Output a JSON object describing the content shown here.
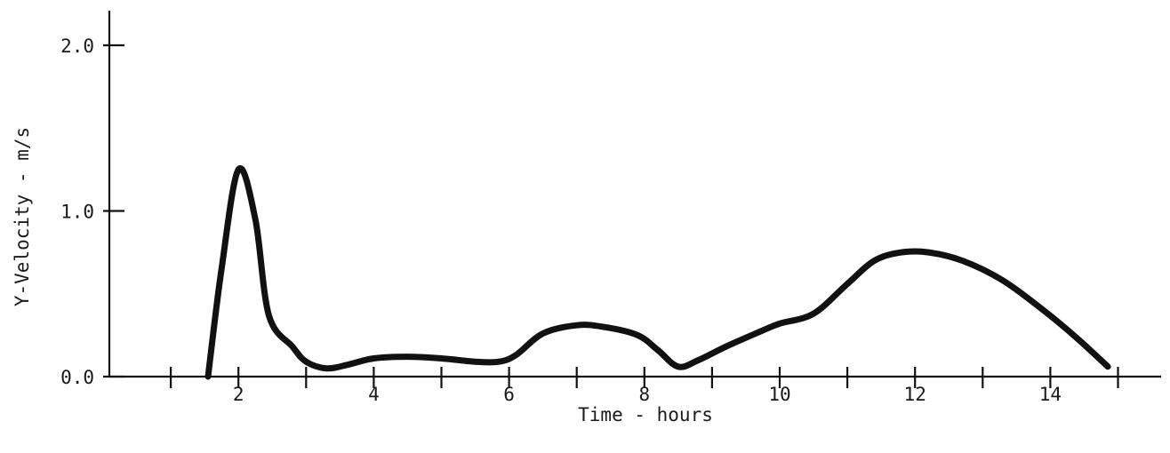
{
  "chart_data": {
    "type": "line",
    "title": "",
    "xlabel": "Time - hours",
    "ylabel": "Y-Velocity - m/s",
    "xlim": [
      0,
      15.5
    ],
    "ylim": [
      0,
      2.0
    ],
    "x_tick_values": [
      1,
      2,
      3,
      4,
      5,
      6,
      7,
      8,
      9,
      10,
      11,
      12,
      13,
      14,
      15
    ],
    "x_tick_labels": [
      "2",
      "4",
      "6",
      "8",
      "10",
      "12",
      "14"
    ],
    "x_tick_label_values": [
      2,
      4,
      6,
      8,
      10,
      12,
      14
    ],
    "y_ticks": [
      0.0,
      1.0,
      2.0
    ],
    "y_tick_labels": [
      "0.0",
      "1.0",
      "2.0"
    ],
    "grid": false,
    "series": [
      {
        "x": [
          1.55,
          1.75,
          2.0,
          2.25,
          2.45,
          2.8,
          3.0,
          3.3,
          3.6,
          4.0,
          4.5,
          5.0,
          5.5,
          5.85,
          6.1,
          6.5,
          7.0,
          7.4,
          7.9,
          8.2,
          8.5,
          8.8,
          9.2,
          9.7,
          10.0,
          10.5,
          11.0,
          11.4,
          11.8,
          12.2,
          12.7,
          13.3,
          13.9,
          14.4,
          14.85
        ],
        "y": [
          0.0,
          0.65,
          1.25,
          0.95,
          0.37,
          0.18,
          0.09,
          0.05,
          0.07,
          0.11,
          0.12,
          0.11,
          0.09,
          0.09,
          0.13,
          0.26,
          0.31,
          0.3,
          0.25,
          0.16,
          0.06,
          0.1,
          0.18,
          0.27,
          0.32,
          0.38,
          0.56,
          0.7,
          0.75,
          0.75,
          0.7,
          0.58,
          0.4,
          0.23,
          0.06
        ]
      }
    ]
  }
}
